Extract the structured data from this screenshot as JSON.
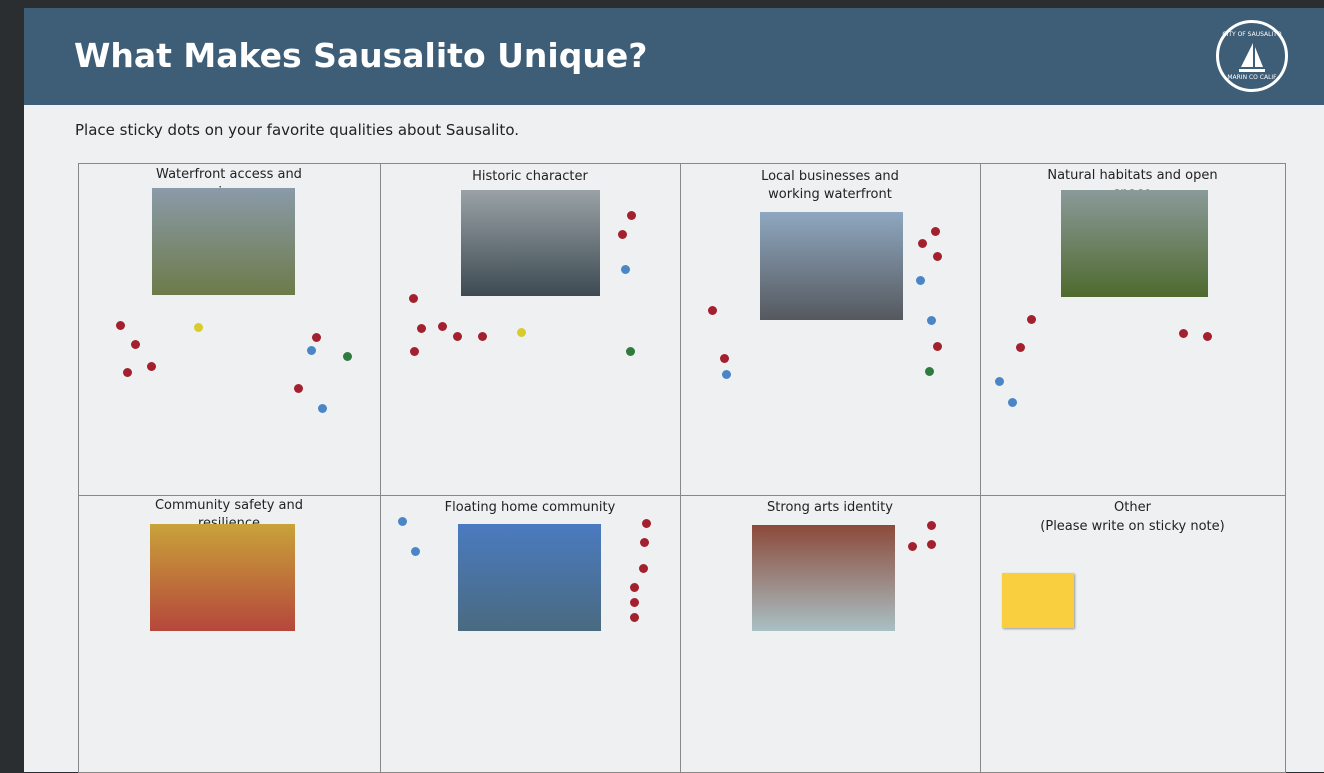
{
  "header": {
    "title": "What Makes Sausalito Unique?",
    "seal_top": "CITY OF SAUSALITO",
    "seal_bottom": "MARIN CO CALIF"
  },
  "subtitle": "Place sticky dots on your favorite qualities about Sausalito.",
  "cells": [
    {
      "label": "Waterfront access and views"
    },
    {
      "label": "Historic character"
    },
    {
      "label": "Local businesses and working waterfront"
    },
    {
      "label": "Natural habitats and open space"
    },
    {
      "label": "Community safety and resilience"
    },
    {
      "label": "Floating home community"
    },
    {
      "label": "Strong arts identity"
    },
    {
      "label": "Other",
      "note": "(Please write on sticky note)"
    }
  ]
}
